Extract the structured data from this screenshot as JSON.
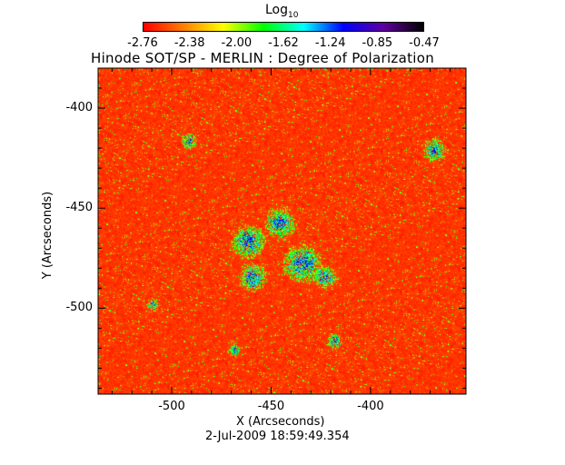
{
  "chart_data": {
    "type": "heatmap",
    "title": "Hinode SOT/SP - MERLIN : Degree of Polarization",
    "xlabel": "X (Arcseconds)",
    "ylabel": "Y (Arcseconds)",
    "subtitle": "2-Jul-2009 18:59:49.354",
    "xlim": [
      -537,
      -352
    ],
    "ylim": [
      -543,
      -380
    ],
    "xticks": [
      "-500",
      "-450",
      "-400"
    ],
    "xtick_values": [
      -500,
      -450,
      -400
    ],
    "yticks": [
      "-400",
      "-450",
      "-500"
    ],
    "ytick_values": [
      -400,
      -450,
      -500
    ],
    "colorbar": {
      "label_base": "Log",
      "label_sub": "10",
      "range": [
        -2.76,
        -0.47
      ],
      "ticks": [
        "-2.76",
        "-2.38",
        "-2.00",
        "-1.62",
        "-1.24",
        "-0.85",
        "-0.47"
      ],
      "colormap": [
        "#ff0000",
        "#ff8000",
        "#ffff00",
        "#00ff00",
        "#00ffff",
        "#0000ff",
        "#6000a0",
        "#000000"
      ]
    },
    "grid": false
  }
}
